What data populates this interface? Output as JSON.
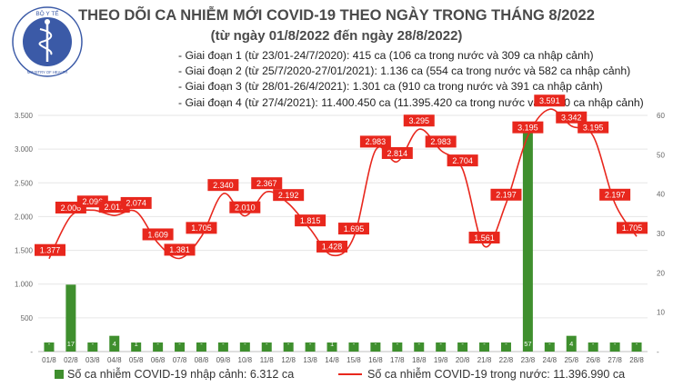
{
  "header": {
    "title": "THEO DÕI CA NHIỄM MỚI COVID-19 THEO NGÀY TRONG THÁNG 8/2022",
    "subtitle": "(từ ngày 01/8/2022 đến ngày 28/8/2022)"
  },
  "logo": {
    "text": "BỘ Y TẾ",
    "ring_text": "MINISTRY OF HEALTH",
    "icon": "caduceus-emblem"
  },
  "phases": [
    "- Giai đoạn 1 (từ 23/01-24/7/2020): 415 ca (106 ca trong nước và 309 ca nhập cảnh)",
    "- Giai đoạn 2 (từ 25/7/2020-27/01/2021): 1.136 ca (554 ca trong nước và 582 ca nhập cảnh)",
    "- Giai đoạn 3 (từ 28/01-26/4/2021): 1.301 ca (910 ca trong nước và 391 ca nhập cảnh)",
    "- Giai đoạn 4 (từ 27/4/2021): 11.400.450 ca (11.395.420 ca trong nước và 5.030 ca nhập cảnh)"
  ],
  "legend": {
    "imported": "Số ca nhiễm COVID-19 nhập cảnh: 6.312 ca",
    "domestic": "Số ca nhiễm COVID-19 trong nước: 11.396.990 ca"
  },
  "colors": {
    "bar": "#3f8f2e",
    "line": "#e8271d",
    "label_bg": "#e8271d",
    "label_text": "#ffffff",
    "grid": "#e6e6e6"
  },
  "chart_data": {
    "type": "bar+line",
    "categories": [
      "01/8",
      "02/8",
      "03/8",
      "04/8",
      "05/8",
      "06/8",
      "07/8",
      "08/8",
      "09/8",
      "10/8",
      "11/8",
      "12/8",
      "13/8",
      "14/8",
      "15/8",
      "16/8",
      "17/8",
      "18/8",
      "19/8",
      "20/8",
      "21/8",
      "22/8",
      "23/8",
      "24/8",
      "25/8",
      "26/8",
      "27/8",
      "28/8"
    ],
    "series": [
      {
        "name": "Số ca nhiễm COVID-19 trong nước",
        "type": "line",
        "axis": "left",
        "values": [
          1377,
          2006,
          2096,
          2017,
          2074,
          1609,
          1381,
          1705,
          2340,
          2010,
          2367,
          2192,
          1815,
          1428,
          1695,
          2983,
          2814,
          3295,
          2983,
          2704,
          1561,
          2197,
          3195,
          3591,
          3342,
          3195,
          2197,
          1705
        ],
        "labels": [
          "1.377",
          "2.006",
          "2.096",
          "2.017",
          "2.074",
          "1.609",
          "1.381",
          "1.705",
          "2.340",
          "2.010",
          "2.367",
          "2.192",
          "1.815",
          "1.428",
          "1.695",
          "2.983",
          "2.814",
          "3.295",
          "2.983",
          "2.704",
          "1.561",
          "2.197",
          "3.195",
          "3.591",
          "3.342",
          "3.195",
          "2.197",
          "1.705"
        ]
      },
      {
        "name": "Số ca nhiễm COVID-19 nhập cảnh",
        "type": "bar",
        "axis": "right",
        "values": [
          0,
          17,
          0,
          4,
          1,
          0,
          0,
          0,
          0,
          0,
          0,
          0,
          0,
          1,
          0,
          0,
          0,
          0,
          0,
          0,
          0,
          0,
          57,
          0,
          4,
          0,
          0,
          0
        ],
        "labels": [
          "-",
          "17",
          "-",
          "4",
          "1",
          "-",
          "-",
          "-",
          "-",
          "-",
          "-",
          "-",
          "-",
          "1",
          "-",
          "-",
          "-",
          "-",
          "-",
          "-",
          "-",
          "-",
          "57",
          "-",
          "4",
          "-",
          "-",
          "-"
        ]
      }
    ],
    "left_axis": {
      "ylim": [
        0,
        3500
      ],
      "ticks": [
        0,
        500,
        1000,
        1500,
        2000,
        2500,
        3000,
        3500
      ],
      "tick_labels": [
        "-",
        "500",
        "1.000",
        "1.500",
        "2.000",
        "2.500",
        "3.000",
        "3.500"
      ]
    },
    "right_axis": {
      "ylim": [
        0,
        60
      ],
      "ticks": [
        0,
        10,
        20,
        30,
        40,
        50,
        60
      ],
      "tick_labels": [
        "-",
        "10",
        "20",
        "30",
        "40",
        "50",
        "60"
      ]
    },
    "grid": true,
    "legend_position": "bottom"
  }
}
